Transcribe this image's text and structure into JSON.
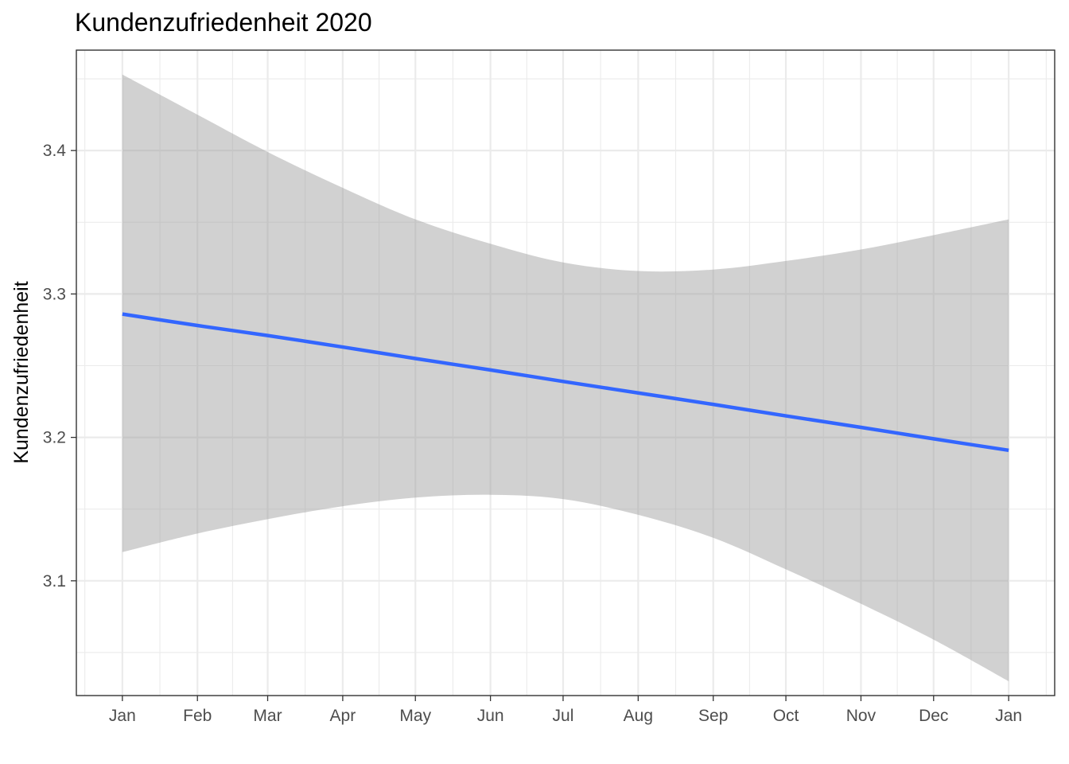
{
  "chart_data": {
    "type": "line",
    "title": "Kundenzufriedenheit 2020",
    "xlabel": "",
    "ylabel": "Kundenzufriedenheit",
    "x_type": "date",
    "x": [
      "2020-01-01",
      "2020-02-01",
      "2020-03-01",
      "2020-04-01",
      "2020-05-01",
      "2020-06-01",
      "2020-07-01",
      "2020-08-01",
      "2020-09-01",
      "2020-10-01",
      "2020-11-01",
      "2020-12-01",
      "2021-01-01"
    ],
    "x_tick_labels": [
      "Jan",
      "Feb",
      "Mar",
      "Apr",
      "May",
      "Jun",
      "Jul",
      "Aug",
      "Sep",
      "Oct",
      "Nov",
      "Dec",
      "Jan"
    ],
    "y_ticks": [
      "3.1",
      "3.2",
      "3.3",
      "3.4"
    ],
    "ylim": [
      3.02,
      3.47
    ],
    "xlim": [
      "2019-12-13",
      "2021-01-20"
    ],
    "grid": true,
    "series": [
      {
        "type": "line",
        "color": "#3366ff",
        "values": [
          3.286,
          3.278,
          3.271,
          3.263,
          3.255,
          3.247,
          3.239,
          3.231,
          3.223,
          3.215,
          3.207,
          3.199,
          3.191
        ]
      }
    ],
    "ribbon": {
      "color": "#999999",
      "lower": [
        3.12,
        3.133,
        3.143,
        3.152,
        3.158,
        3.16,
        3.157,
        3.146,
        3.13,
        3.108,
        3.084,
        3.059,
        3.03
      ],
      "upper": [
        3.453,
        3.425,
        3.399,
        3.374,
        3.352,
        3.335,
        3.322,
        3.316,
        3.317,
        3.323,
        3.331,
        3.341,
        3.352
      ]
    }
  }
}
